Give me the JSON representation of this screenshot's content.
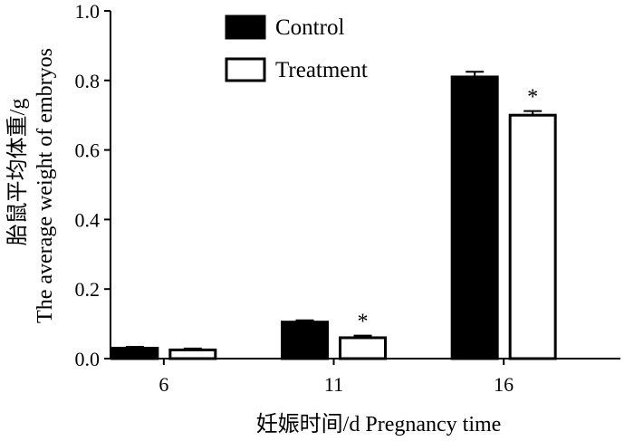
{
  "chart_data": {
    "type": "bar",
    "categories": [
      "6",
      "11",
      "16"
    ],
    "series": [
      {
        "name": "Control",
        "values": [
          0.03,
          0.105,
          0.81
        ],
        "errors": [
          0.004,
          0.005,
          0.015
        ],
        "fill": "#000000"
      },
      {
        "name": "Treatment",
        "values": [
          0.025,
          0.06,
          0.7
        ],
        "errors": [
          0.004,
          0.006,
          0.012
        ],
        "fill": "#ffffff"
      }
    ],
    "significance": [
      {
        "series": 1,
        "category": 1,
        "label": "*"
      },
      {
        "series": 1,
        "category": 2,
        "label": "*"
      }
    ],
    "yticks": [
      "0.0",
      "0.2",
      "0.4",
      "0.6",
      "0.8",
      "1.0"
    ],
    "ytick_values": [
      0,
      0.2,
      0.4,
      0.6,
      0.8,
      1.0
    ],
    "ylim": [
      0,
      1.0
    ],
    "xlabel": "妊娠时间/d  Pregnancy time",
    "ylabel_line1": "胎鼠平均体重/g",
    "ylabel_line2": "The average weight of embryos",
    "legend_position": "top-center",
    "grid": false
  }
}
